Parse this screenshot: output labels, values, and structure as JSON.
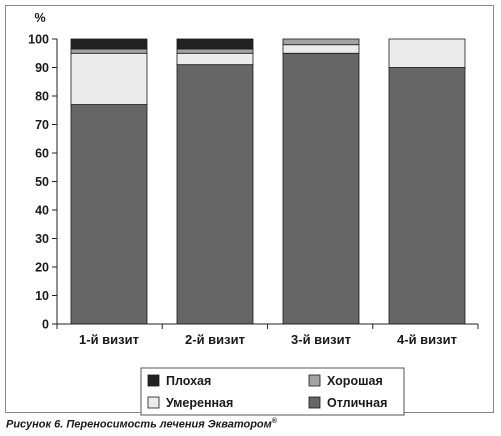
{
  "caption": {
    "text": "Рисунок 6. Переносимость лечения Экватором",
    "sup": "®"
  },
  "chart_data": {
    "type": "bar",
    "stacked": true,
    "ylabel": "%",
    "ylim": [
      0,
      100
    ],
    "yticks": [
      0,
      10,
      20,
      30,
      40,
      50,
      60,
      70,
      80,
      90,
      100
    ],
    "categories": [
      "1-й визит",
      "2-й визит",
      "3-й визит",
      "4-й визит"
    ],
    "grid": false,
    "legend_position": "bottom",
    "series": [
      {
        "name": "Отличная",
        "color": "#666666",
        "values": [
          77,
          91,
          95,
          90
        ]
      },
      {
        "name": "Умеренная",
        "color": "#ebebeb",
        "values": [
          18,
          4,
          3,
          10
        ]
      },
      {
        "name": "Хорошая",
        "color": "#a3a3a3",
        "values": [
          1.5,
          1.5,
          2,
          0
        ]
      },
      {
        "name": "Плохая",
        "color": "#222222",
        "values": [
          3.5,
          3.5,
          0,
          0
        ]
      }
    ],
    "legend_order": [
      "Плохая",
      "Хорошая",
      "Умеренная",
      "Отличная"
    ]
  }
}
